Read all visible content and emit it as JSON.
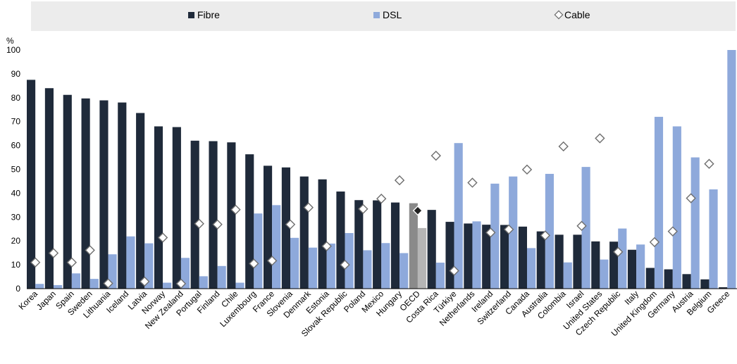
{
  "chart_data": {
    "type": "bar",
    "ylabel": "%",
    "ylim": [
      0,
      100
    ],
    "yticks": [
      0,
      10,
      20,
      30,
      40,
      50,
      60,
      70,
      80,
      90,
      100
    ],
    "legend_position": "top",
    "grid": true,
    "colors": {
      "fibre": "#1f2a3a",
      "dsl": "#8ea9db",
      "fibre_highlight": "#8a8a8a",
      "dsl_highlight": "#b5b5b5",
      "cable_marker_fill": "#ffffff",
      "cable_marker_stroke": "#6e6e6e",
      "legend_bg": "#ececec"
    },
    "highlight_category": "OECD",
    "categories": [
      "Korea",
      "Japan",
      "Spain",
      "Sweden",
      "Lithuania",
      "Iceland",
      "Latvia",
      "Norway",
      "New Zealand",
      "Portugal",
      "Finland",
      "Chile",
      "Luxembourg",
      "France",
      "Slovenia",
      "Denmark",
      "Estonia",
      "Slovak Republic",
      "Poland",
      "Mexico",
      "Hungary",
      "OECD",
      "Costa Rica",
      "Türkiye",
      "Netherlands",
      "Ireland",
      "Switzerland",
      "Canada",
      "Australia",
      "Colombia",
      "Israel",
      "United States",
      "Czech Republic",
      "Italy",
      "United Kingdom",
      "Germany",
      "Austria",
      "Belgium",
      "Greece"
    ],
    "series": [
      {
        "name": "Fibre",
        "kind": "bar",
        "values": [
          87.5,
          84,
          81.2,
          79.7,
          78.9,
          78,
          73.6,
          68,
          67.7,
          62,
          61.8,
          61.3,
          56.3,
          51.5,
          50.8,
          47,
          45.8,
          40.7,
          37.1,
          37,
          36.1,
          35.8,
          33,
          28,
          27.3,
          26.8,
          26.7,
          26,
          24,
          22.6,
          22.6,
          19.8,
          19.7,
          16.3,
          8.7,
          8.1,
          6.1,
          3.9,
          0.6
        ]
      },
      {
        "name": "DSL",
        "kind": "bar",
        "values": [
          2,
          1.5,
          6.4,
          4.1,
          14.4,
          21.9,
          19,
          2.5,
          12.9,
          5.2,
          9.5,
          2.5,
          31.5,
          35,
          21.3,
          17.2,
          18.9,
          23.3,
          16.1,
          19.1,
          14.9,
          25.4,
          10.9,
          61,
          28.2,
          44,
          47,
          17,
          48.1,
          11,
          51,
          12.2,
          25.2,
          18.5,
          72,
          68,
          55,
          41.6,
          100
        ]
      },
      {
        "name": "Cable",
        "kind": "marker",
        "values": [
          11,
          14.9,
          11,
          16.1,
          2.2,
          null,
          3,
          21.4,
          2.1,
          27.2,
          26.9,
          33.1,
          10.5,
          11.7,
          26.9,
          34,
          17.8,
          10,
          33.4,
          37.7,
          45.4,
          32.7,
          55.7,
          7.5,
          44.4,
          23.5,
          24.8,
          49.9,
          22.3,
          59.6,
          26.3,
          63,
          15.4,
          null,
          19.5,
          24,
          37.9,
          52.3,
          null
        ]
      }
    ]
  }
}
